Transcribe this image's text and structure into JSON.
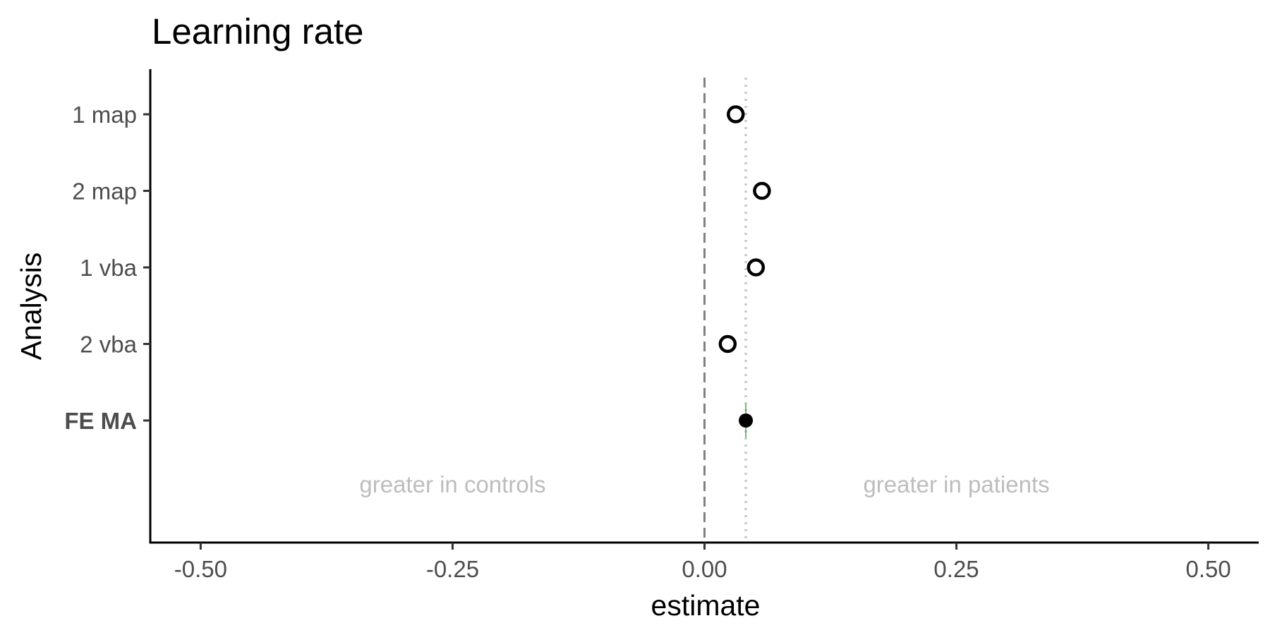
{
  "chart_data": {
    "type": "scatter",
    "title": "Learning rate",
    "xlabel": "estimate",
    "ylabel": "Analysis",
    "xlim": [
      -0.55,
      0.55
    ],
    "x_ticks": [
      -0.5,
      -0.25,
      0.0,
      0.25,
      0.5
    ],
    "x_tick_labels": [
      "-0.50",
      "-0.25",
      "0.00",
      "0.25",
      "0.50"
    ],
    "categories": [
      "1 map",
      "2 map",
      "1 vba",
      "2 vba",
      "FE MA"
    ],
    "bold_categories": [
      "FE MA"
    ],
    "series": [
      {
        "marker": "open-circle",
        "color": "#000000",
        "points": [
          {
            "category": "1 map",
            "x": 0.031
          },
          {
            "category": "2 map",
            "x": 0.057
          },
          {
            "category": "1 vba",
            "x": 0.051
          },
          {
            "category": "2 vba",
            "x": 0.023
          }
        ]
      },
      {
        "marker": "filled-circle",
        "color": "#000000",
        "points": [
          {
            "category": "FE MA",
            "x": 0.041,
            "ci": [
              0.04,
              0.042
            ]
          }
        ]
      }
    ],
    "ci_color": "#4caf50",
    "reference_lines": [
      {
        "x": 0.0,
        "style": "dashed",
        "color": "#808080"
      },
      {
        "x": 0.041,
        "style": "dotted",
        "color": "#c8c8c8"
      }
    ],
    "annotations": [
      {
        "text": "greater in controls",
        "x": -0.25
      },
      {
        "text": "greater in patients",
        "x": 0.25
      }
    ],
    "grid": false
  }
}
